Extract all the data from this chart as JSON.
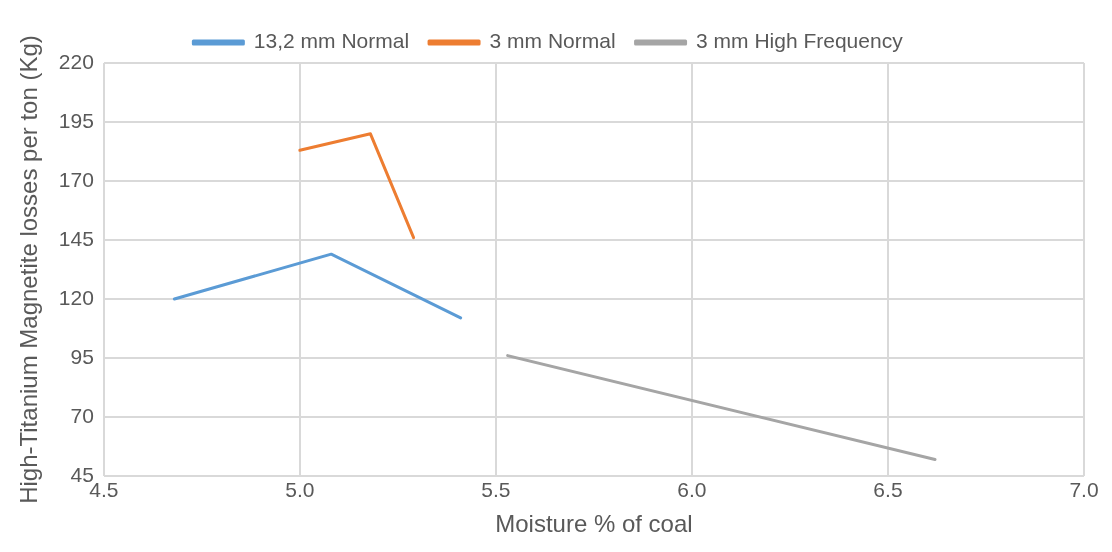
{
  "chart_data": {
    "type": "line",
    "xlabel": "Moisture % of coal",
    "ylabel": "High-Titanium Magnetite losses per ton (Kg)",
    "xlim": [
      4.5,
      7.0
    ],
    "xticks": [
      {
        "value": 4.5,
        "label": "4.5"
      },
      {
        "value": 5.0,
        "label": "5.0"
      },
      {
        "value": 5.5,
        "label": "5.5"
      },
      {
        "value": 6.0,
        "label": "6.0"
      },
      {
        "value": 6.5,
        "label": "6.5"
      },
      {
        "value": 7.0,
        "label": "7.0"
      }
    ],
    "ylim": [
      45,
      220
    ],
    "yticks": [
      45,
      70,
      95,
      120,
      145,
      170,
      195,
      220
    ],
    "grid": true,
    "legend": "top",
    "marker": "none",
    "line_style": "solid",
    "series": [
      {
        "name": "13,2 mm Normal",
        "color": "#5b9bd5",
        "x": [
          4.68,
          5.08,
          5.41
        ],
        "values": [
          120,
          139,
          112
        ]
      },
      {
        "name": "3 mm Normal",
        "color": "#ed7d31",
        "x": [
          5.0,
          5.18,
          5.29
        ],
        "values": [
          183,
          190,
          146
        ]
      },
      {
        "name": "3 mm High Frequency",
        "color": "#a5a5a5",
        "x": [
          5.53,
          6.62
        ],
        "values": [
          96,
          52
        ]
      }
    ]
  }
}
